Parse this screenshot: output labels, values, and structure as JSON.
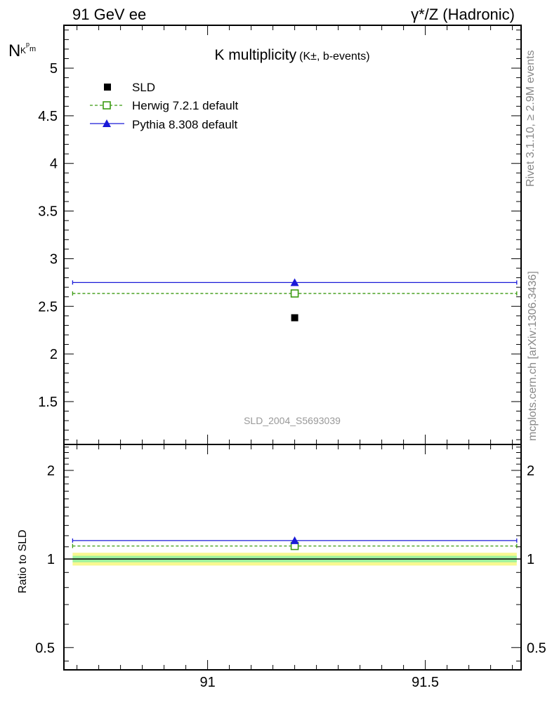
{
  "header": {
    "left_label": "91 GeV ee",
    "right_label": "γ*/Z (Hadronic)"
  },
  "side_labels": {
    "rivet": "Rivet 3.1.10, ≥ 2.9M events",
    "mcplots": "mcplots.cern.ch [arXiv:1306.3436]"
  },
  "chart_data": [
    {
      "type": "scatter",
      "title_main": "K multiplicity",
      "title_sub": "(K±, b-events)",
      "ylabel_main": "N",
      "ylabel_sub": "K^p_m",
      "watermark": "SLD_2004_S5693039",
      "xlim": [
        90.67,
        91.72
      ],
      "ylim": [
        1.05,
        5.45
      ],
      "yticks": [
        1.5,
        2,
        2.5,
        3,
        3.5,
        4,
        4.5,
        5
      ],
      "ytick_labels": [
        "1.5",
        "2",
        "2.5",
        "3",
        "3.5",
        "4",
        "4.5",
        "5"
      ],
      "x_bin": [
        90.69,
        91.71
      ],
      "series": [
        {
          "name": "SLD",
          "x": [
            91.2
          ],
          "y": [
            2.38
          ],
          "marker": "filled-square",
          "color": "#000000"
        },
        {
          "name": "Herwig 7.2.1 default",
          "x": [
            91.2
          ],
          "y": [
            2.635
          ],
          "marker": "open-square",
          "color": "#3a9a10",
          "line": "dashed"
        },
        {
          "name": "Pythia 8.308 default",
          "x": [
            91.2
          ],
          "y": [
            2.75
          ],
          "marker": "filled-triangle",
          "color": "#1a1ad8",
          "line": "solid"
        }
      ],
      "legend_position": "top-left"
    },
    {
      "type": "scatter",
      "ylabel": "Ratio to SLD",
      "scale": "log",
      "xlim": [
        90.67,
        91.72
      ],
      "ylim": [
        0.42,
        2.45
      ],
      "yticks": [
        0.5,
        1,
        2
      ],
      "ytick_labels": [
        "0.5",
        "1",
        "2"
      ],
      "xticks": [
        91,
        91.5
      ],
      "xtick_labels": [
        "91",
        "91.5"
      ],
      "reference": 1.0,
      "band_inner": [
        0.975,
        1.025
      ],
      "band_outer": [
        0.95,
        1.05
      ],
      "band_inner_color": "#9ef29e",
      "band_outer_color": "#f8f890",
      "series": [
        {
          "name": "Herwig 7.2.1 default",
          "x": [
            91.2
          ],
          "y": [
            1.107
          ],
          "color": "#3a9a10"
        },
        {
          "name": "Pythia 8.308 default",
          "x": [
            91.2
          ],
          "y": [
            1.155
          ],
          "color": "#1a1ad8"
        }
      ]
    }
  ]
}
